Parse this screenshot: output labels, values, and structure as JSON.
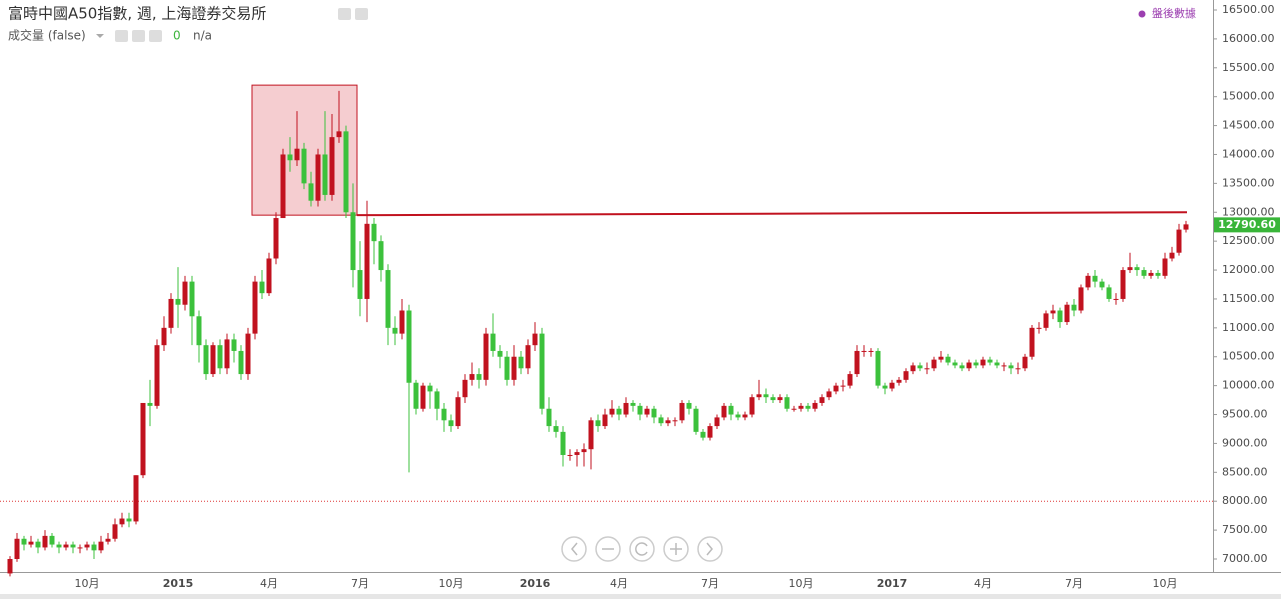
{
  "chart_data": {
    "type": "candlestick",
    "title": "富時中國A50指數, 週, 上海證券交易所",
    "volume_label": "成交量 (false)",
    "volume_value": 0,
    "volume_na": "n/a",
    "after_hours": "盤後數據",
    "last_value_label": "12790.60",
    "up_color": "#c1121f",
    "down_color": "#3cc13c",
    "categories": [
      null,
      null,
      null,
      null,
      null,
      null,
      null,
      null,
      null,
      null,
      null,
      "10月",
      null,
      null,
      null,
      null,
      null,
      null,
      null,
      null,
      null,
      null,
      null,
      null,
      "2015",
      null,
      null,
      null,
      null,
      null,
      null,
      null,
      null,
      null,
      null,
      null,
      null,
      "4月",
      null,
      null,
      null,
      null,
      null,
      null,
      null,
      null,
      null,
      null,
      null,
      null,
      "7月",
      null,
      null,
      null,
      null,
      null,
      null,
      null,
      null,
      null,
      null,
      null,
      null,
      "10月",
      null,
      null,
      null,
      null,
      null,
      null,
      null,
      null,
      null,
      null,
      null,
      "2016",
      null,
      null,
      null,
      null,
      null,
      null,
      null,
      null,
      null,
      null,
      null,
      "4月",
      null,
      null,
      null,
      null,
      null,
      null,
      null,
      null,
      null,
      null,
      null,
      null,
      "7月",
      null,
      null,
      null,
      null,
      null,
      null,
      null,
      null,
      null,
      null,
      null,
      null,
      "10月",
      null,
      null,
      null,
      null,
      null,
      null,
      null,
      null,
      null,
      null,
      null,
      null,
      "2017",
      null,
      null,
      null,
      null,
      null,
      null,
      null,
      null,
      null,
      null,
      null,
      null,
      "4月",
      null,
      null,
      null,
      null,
      null,
      null,
      null,
      null,
      null,
      null,
      null,
      null,
      "7月",
      null,
      null,
      null,
      null,
      null,
      null,
      null,
      null,
      null,
      null,
      null,
      null,
      "10月",
      null,
      null,
      null
    ],
    "open": [
      6750,
      7000,
      7350,
      7250,
      7300,
      7200,
      7400,
      7250,
      7200,
      7250,
      7200,
      7200,
      7250,
      7150,
      7300,
      7350,
      7600,
      7700,
      7650,
      8450,
      9700,
      9650,
      10700,
      11000,
      11500,
      11400,
      11800,
      11200,
      10700,
      10200,
      10700,
      10300,
      10800,
      10600,
      10200,
      10900,
      11800,
      11600,
      12200,
      12900,
      14000,
      13900,
      14100,
      13500,
      13200,
      14000,
      13300,
      14300,
      14400,
      13000,
      12000,
      11500,
      12800,
      12500,
      12000,
      11000,
      10900,
      11300,
      10050,
      9600,
      10000,
      9900,
      9600,
      9400,
      9300,
      9800,
      10100,
      10200,
      10100,
      10900,
      10600,
      10500,
      10100,
      10500,
      10300,
      10700,
      10900,
      9600,
      9300,
      9200,
      8800,
      8800,
      8850,
      8900,
      9400,
      9300,
      9500,
      9600,
      9500,
      9700,
      9650,
      9500,
      9600,
      9450,
      9350,
      9400,
      9400,
      9700,
      9600,
      9200,
      9100,
      9300,
      9450,
      9650,
      9500,
      9450,
      9500,
      9800,
      9850,
      9800,
      9750,
      9800,
      9600,
      9600,
      9650,
      9600,
      9700,
      9800,
      9900,
      10000,
      10000,
      10200,
      10600,
      10600,
      10600,
      10000,
      9950,
      10050,
      10100,
      10250,
      10350,
      10300,
      10300,
      10450,
      10500,
      10400,
      10350,
      10300,
      10400,
      10350,
      10450,
      10400,
      10350,
      10350,
      10300,
      10300,
      10500,
      11000,
      11000,
      11250,
      11300,
      11100,
      11400,
      11300,
      11700,
      11900,
      11800,
      11700,
      11500,
      11500,
      12000,
      12050,
      12000,
      11900,
      11950,
      11900,
      12200,
      12300,
      12700
    ],
    "high": [
      7050,
      7450,
      7400,
      7400,
      7350,
      7500,
      7450,
      7300,
      7300,
      7300,
      7250,
      7300,
      7300,
      7400,
      7450,
      7700,
      7800,
      7800,
      8450,
      9700,
      10100,
      10800,
      11200,
      11600,
      12050,
      11900,
      11900,
      11300,
      10800,
      10750,
      10800,
      10900,
      10900,
      10700,
      11000,
      11900,
      12000,
      12300,
      13000,
      14100,
      14300,
      14750,
      14200,
      13700,
      14100,
      14750,
      14700,
      15100,
      14500,
      13500,
      12500,
      13200,
      12900,
      12600,
      12100,
      11200,
      11500,
      11400,
      10100,
      10050,
      10050,
      9950,
      9700,
      9500,
      9900,
      10200,
      10400,
      10300,
      11000,
      11250,
      10700,
      10600,
      10700,
      10600,
      10800,
      11100,
      11000,
      9800,
      9400,
      9300,
      8900,
      8900,
      9000,
      9450,
      9500,
      9600,
      9750,
      9650,
      9800,
      9750,
      9700,
      9650,
      9650,
      9500,
      9450,
      9450,
      9750,
      9750,
      9650,
      9250,
      9350,
      9500,
      9700,
      9700,
      9550,
      9550,
      9850,
      10100,
      9950,
      9850,
      9850,
      9850,
      9650,
      9700,
      9700,
      9750,
      9850,
      9950,
      10050,
      10100,
      10250,
      10700,
      10700,
      10650,
      10650,
      10050,
      10100,
      10150,
      10300,
      10400,
      10400,
      10400,
      10500,
      10600,
      10550,
      10450,
      10400,
      10450,
      10450,
      10500,
      10500,
      10450,
      10400,
      10400,
      10400,
      10550,
      11050,
      11100,
      11300,
      11400,
      11350,
      11450,
      11500,
      11750,
      11950,
      12000,
      11850,
      11750,
      11600,
      12050,
      12300,
      12100,
      12050,
      12000,
      12000,
      12300,
      12400,
      12800,
      12850
    ],
    "low": [
      6700,
      6950,
      7150,
      7200,
      7100,
      7150,
      7200,
      7100,
      7150,
      7100,
      7100,
      7150,
      7000,
      7100,
      7250,
      7300,
      7550,
      7550,
      7600,
      8400,
      9300,
      9600,
      10600,
      10900,
      11000,
      11300,
      10700,
      10400,
      10100,
      10150,
      10200,
      10200,
      10400,
      10100,
      10100,
      10800,
      11500,
      11550,
      12100,
      12900,
      13700,
      13800,
      13400,
      13100,
      13100,
      13200,
      13200,
      14200,
      12900,
      11700,
      11200,
      11100,
      12100,
      11800,
      10700,
      10700,
      10800,
      8500,
      9500,
      9550,
      9600,
      9400,
      9200,
      9200,
      9250,
      9700,
      10000,
      9950,
      10000,
      10500,
      10300,
      10000,
      10000,
      10200,
      10200,
      10600,
      9500,
      9200,
      9100,
      8600,
      8700,
      8600,
      8600,
      8550,
      9200,
      9250,
      9450,
      9400,
      9450,
      9550,
      9400,
      9450,
      9350,
      9300,
      9300,
      9300,
      9350,
      9500,
      9150,
      9050,
      9050,
      9250,
      9400,
      9400,
      9400,
      9400,
      9450,
      9750,
      9700,
      9700,
      9700,
      9550,
      9550,
      9550,
      9550,
      9550,
      9650,
      9750,
      9850,
      9900,
      9950,
      10150,
      10500,
      10500,
      9950,
      9850,
      9900,
      10000,
      10050,
      10200,
      10250,
      10200,
      10250,
      10400,
      10350,
      10300,
      10250,
      10250,
      10300,
      10300,
      10350,
      10300,
      10250,
      10200,
      10200,
      10250,
      10450,
      10900,
      10950,
      11150,
      11000,
      11050,
      11200,
      11250,
      11650,
      11700,
      11650,
      11450,
      11400,
      11450,
      11950,
      11900,
      11850,
      11850,
      11850,
      11850,
      12150,
      12250,
      12650
    ],
    "close": [
      7000,
      7350,
      7250,
      7300,
      7200,
      7400,
      7250,
      7200,
      7250,
      7200,
      7200,
      7250,
      7150,
      7300,
      7350,
      7600,
      7700,
      7650,
      8450,
      9700,
      9650,
      10700,
      11000,
      11500,
      11400,
      11800,
      11200,
      10700,
      10200,
      10700,
      10300,
      10800,
      10600,
      10200,
      10900,
      11800,
      11600,
      12200,
      12900,
      14000,
      13900,
      14100,
      13500,
      13200,
      14000,
      13300,
      14300,
      14400,
      13000,
      12000,
      11500,
      12800,
      12500,
      12000,
      11000,
      10900,
      11300,
      10050,
      9600,
      10000,
      9900,
      9600,
      9400,
      9300,
      9800,
      10100,
      10200,
      10100,
      10900,
      10600,
      10500,
      10100,
      10500,
      10300,
      10700,
      10900,
      9600,
      9300,
      9200,
      8800,
      8800,
      8850,
      8900,
      9400,
      9300,
      9500,
      9600,
      9500,
      9700,
      9650,
      9500,
      9600,
      9450,
      9350,
      9400,
      9400,
      9700,
      9600,
      9200,
      9100,
      9300,
      9450,
      9650,
      9500,
      9450,
      9500,
      9800,
      9850,
      9800,
      9750,
      9800,
      9600,
      9600,
      9650,
      9600,
      9700,
      9800,
      9900,
      10000,
      10000,
      10200,
      10600,
      10600,
      10600,
      10000,
      9950,
      10050,
      10100,
      10250,
      10350,
      10300,
      10300,
      10450,
      10500,
      10400,
      10350,
      10300,
      10400,
      10350,
      10450,
      10400,
      10350,
      10350,
      10300,
      10300,
      10500,
      11000,
      11000,
      11250,
      11300,
      11100,
      11400,
      11300,
      11700,
      11900,
      11800,
      11700,
      11500,
      11500,
      12000,
      12050,
      12000,
      11900,
      11950,
      11900,
      12200,
      12300,
      12700,
      12790.6
    ],
    "ylim": [
      7000,
      16500
    ],
    "yticks": [
      {
        "value": 7000,
        "label": "7000.00"
      },
      {
        "value": 7500,
        "label": "7500.00"
      },
      {
        "value": 8000,
        "label": "8000.00"
      },
      {
        "value": 8500,
        "label": "8500.00"
      },
      {
        "value": 9000,
        "label": "9000.00"
      },
      {
        "value": 9500,
        "label": "9500.00"
      },
      {
        "value": 10000,
        "label": "10000.00"
      },
      {
        "value": 10500,
        "label": "10500.00"
      },
      {
        "value": 11000,
        "label": "11000.00"
      },
      {
        "value": 11500,
        "label": "11500.00"
      },
      {
        "value": 12000,
        "label": "12000.00"
      },
      {
        "value": 12500,
        "label": "12500.00"
      },
      {
        "value": 13000,
        "label": "13000.00"
      },
      {
        "value": 13500,
        "label": "13500.00"
      },
      {
        "value": 14000,
        "label": "14000.00"
      },
      {
        "value": 14500,
        "label": "14500.00"
      },
      {
        "value": 15000,
        "label": "15000.00"
      },
      {
        "value": 15500,
        "label": "15500.00"
      },
      {
        "value": 16000,
        "label": "16000.00"
      },
      {
        "value": 16500,
        "label": "16500.00"
      }
    ],
    "box": {
      "top": 15200,
      "bottom": 12950
    },
    "trend_line": [
      12950,
      13000
    ],
    "level_line": 8000
  }
}
